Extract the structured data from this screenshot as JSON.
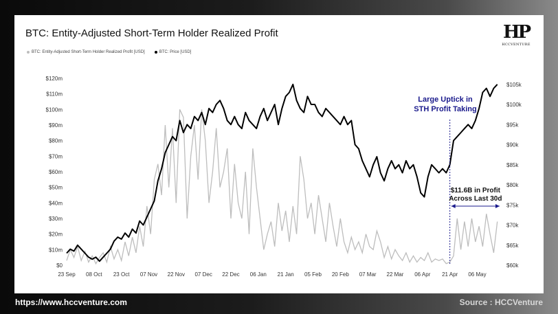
{
  "header": {
    "title": "BTC: Entity-Adjusted Short-Term Holder Realized Profit",
    "logo_text": "HCCVENTURE"
  },
  "legend": [
    {
      "label": "BTC: Entity-Adjusted Short-Term Holder Realized Profit [USD]",
      "color": "#bdbdbd"
    },
    {
      "label": "BTC: Price [USD]",
      "color": "#000000"
    }
  ],
  "footer": {
    "url": "https://www.hccventure.com",
    "source": "Source : HCCVenture"
  },
  "annotations": {
    "uptick": [
      "Large Uptick in",
      "STH Profit Taking"
    ],
    "profit": [
      "$11.6B in Profit",
      "Across Last 30d"
    ]
  },
  "colors": {
    "profit_series": "#bdbdbd",
    "price_series": "#000000",
    "annotation": "#1a1a8c"
  },
  "chart_data": {
    "type": "line",
    "title": "BTC: Entity-Adjusted Short-Term Holder Realized Profit",
    "x_tick_labels": [
      "23 Sep",
      "08 Oct",
      "23 Oct",
      "07 Nov",
      "22 Nov",
      "07 Dec",
      "22 Dec",
      "06 Jan",
      "21 Jan",
      "05 Feb",
      "20 Feb",
      "07 Mar",
      "22 Mar",
      "06 Apr",
      "21 Apr",
      "06 May"
    ],
    "y_left_ticks": [
      "$0",
      "$10m",
      "$20m",
      "$30m",
      "$40m",
      "$50m",
      "$60m",
      "$70m",
      "$80m",
      "$90m",
      "$100m",
      "$110m",
      "$120m"
    ],
    "y_left_range": [
      0,
      120
    ],
    "y_right_ticks": [
      "$60k",
      "$65k",
      "$70k",
      "$75k",
      "$80k",
      "$85k",
      "$90k",
      "$95k",
      "$100k",
      "$105k"
    ],
    "y_right_range": [
      60,
      106.5
    ],
    "x_range_days": [
      0,
      238
    ],
    "marker_day": 210,
    "series": [
      {
        "name": "BTC: Entity-Adjusted Short-Term Holder Realized Profit [USD]",
        "axis": "left",
        "unit": "$m",
        "x": [
          0,
          2,
          4,
          6,
          8,
          10,
          12,
          14,
          16,
          18,
          20,
          22,
          24,
          26,
          28,
          30,
          32,
          34,
          36,
          38,
          40,
          42,
          44,
          46,
          48,
          50,
          52,
          54,
          56,
          58,
          60,
          62,
          64,
          66,
          68,
          70,
          72,
          74,
          76,
          78,
          80,
          82,
          84,
          86,
          88,
          90,
          92,
          94,
          96,
          98,
          100,
          102,
          104,
          106,
          108,
          110,
          112,
          114,
          116,
          118,
          120,
          122,
          124,
          126,
          128,
          130,
          132,
          134,
          136,
          138,
          140,
          142,
          144,
          146,
          148,
          150,
          152,
          154,
          156,
          158,
          160,
          162,
          164,
          166,
          168,
          170,
          172,
          174,
          176,
          178,
          180,
          182,
          184,
          186,
          188,
          190,
          192,
          194,
          196,
          198,
          200,
          202,
          204,
          206,
          208,
          210,
          212,
          214,
          216,
          218,
          220,
          222,
          224,
          226,
          228,
          230,
          232,
          234,
          236
        ],
        "values": [
          3,
          10,
          5,
          12,
          3,
          9,
          2,
          6,
          1,
          5,
          8,
          2,
          12,
          4,
          10,
          3,
          15,
          6,
          18,
          8,
          25,
          12,
          38,
          20,
          55,
          65,
          45,
          90,
          50,
          88,
          40,
          100,
          95,
          30,
          70,
          90,
          55,
          100,
          80,
          40,
          60,
          88,
          50,
          60,
          75,
          30,
          65,
          40,
          30,
          60,
          20,
          75,
          50,
          30,
          10,
          20,
          28,
          12,
          40,
          22,
          35,
          15,
          38,
          20,
          70,
          55,
          30,
          40,
          20,
          45,
          30,
          15,
          40,
          25,
          12,
          30,
          15,
          8,
          18,
          10,
          15,
          8,
          20,
          12,
          10,
          22,
          15,
          5,
          12,
          4,
          10,
          6,
          3,
          8,
          2,
          6,
          2,
          5,
          3,
          8,
          2,
          4,
          3,
          4,
          1,
          2,
          6,
          30,
          10,
          28,
          12,
          30,
          15,
          25,
          12,
          33,
          20,
          8,
          28
        ]
      },
      {
        "name": "BTC: Price [USD]",
        "axis": "right",
        "unit": "$k",
        "x": [
          0,
          2,
          4,
          6,
          8,
          10,
          12,
          14,
          16,
          18,
          20,
          22,
          24,
          26,
          28,
          30,
          32,
          34,
          36,
          38,
          40,
          42,
          44,
          46,
          48,
          50,
          52,
          54,
          56,
          58,
          60,
          62,
          64,
          66,
          68,
          70,
          72,
          74,
          76,
          78,
          80,
          82,
          84,
          86,
          88,
          90,
          92,
          94,
          96,
          98,
          100,
          102,
          104,
          106,
          108,
          110,
          112,
          114,
          116,
          118,
          120,
          122,
          124,
          126,
          128,
          130,
          132,
          134,
          136,
          138,
          140,
          142,
          144,
          146,
          148,
          150,
          152,
          154,
          156,
          158,
          160,
          162,
          164,
          166,
          168,
          170,
          172,
          174,
          176,
          178,
          180,
          182,
          184,
          186,
          188,
          190,
          192,
          194,
          196,
          198,
          200,
          202,
          204,
          206,
          208,
          210,
          212,
          214,
          216,
          218,
          220,
          222,
          224,
          226,
          228,
          230,
          232,
          234,
          236
        ],
        "values": [
          63,
          64,
          63.5,
          65,
          64,
          63,
          62,
          61.5,
          62,
          61,
          62,
          63,
          64,
          66,
          67,
          66.5,
          68,
          67,
          69,
          68,
          71,
          70,
          72,
          74,
          76,
          81,
          84,
          88,
          90,
          92,
          91,
          96,
          93,
          95,
          94,
          97,
          96,
          98,
          95,
          99,
          98,
          100,
          101,
          99,
          96,
          95,
          97,
          95,
          94,
          98,
          96,
          95,
          94,
          97,
          99,
          96,
          98,
          100,
          95,
          99,
          102,
          103,
          105,
          101,
          99,
          98,
          102,
          100,
          100,
          98,
          97,
          99,
          98,
          97,
          96,
          95,
          97,
          95,
          96,
          90,
          89,
          86,
          84,
          82,
          85,
          87,
          83,
          81,
          84,
          86,
          84,
          85,
          83,
          86,
          84,
          85,
          82,
          78,
          77,
          82,
          85,
          84,
          83,
          84,
          83,
          85,
          91,
          92,
          93,
          94,
          95,
          94,
          96,
          99,
          103,
          104,
          102,
          104,
          105
        ]
      }
    ]
  }
}
